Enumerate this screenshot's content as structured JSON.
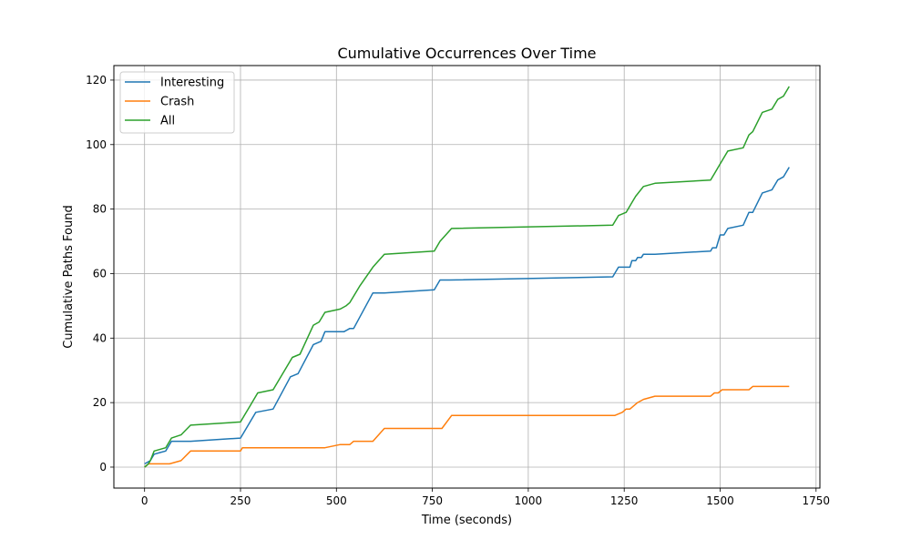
{
  "chart_data": {
    "type": "line",
    "title": "Cumulative Occurrences Over Time",
    "xlabel": "Time (seconds)",
    "ylabel": "Cumulative Paths Found",
    "xlim": [
      -80,
      1760
    ],
    "ylim": [
      -6.5,
      124.5
    ],
    "xticks": [
      0,
      250,
      500,
      750,
      1000,
      1250,
      1500,
      1750
    ],
    "yticks": [
      0,
      20,
      40,
      60,
      80,
      100,
      120
    ],
    "grid": true,
    "legend_position": "top-left",
    "series": [
      {
        "name": "Interesting",
        "color": "#1f77b4",
        "points": [
          [
            0,
            1
          ],
          [
            15,
            2
          ],
          [
            25,
            4
          ],
          [
            40,
            4.5
          ],
          [
            55,
            5
          ],
          [
            70,
            8
          ],
          [
            120,
            8
          ],
          [
            250,
            9
          ],
          [
            265,
            12
          ],
          [
            275,
            14
          ],
          [
            290,
            17
          ],
          [
            335,
            18
          ],
          [
            380,
            28
          ],
          [
            400,
            29
          ],
          [
            440,
            38
          ],
          [
            460,
            39
          ],
          [
            470,
            42
          ],
          [
            520,
            42
          ],
          [
            535,
            43
          ],
          [
            545,
            43
          ],
          [
            595,
            54
          ],
          [
            625,
            54
          ],
          [
            755,
            55
          ],
          [
            770,
            58
          ],
          [
            795,
            58
          ],
          [
            1220,
            59
          ],
          [
            1235,
            62
          ],
          [
            1265,
            62
          ],
          [
            1270,
            64
          ],
          [
            1280,
            64
          ],
          [
            1285,
            65
          ],
          [
            1295,
            65
          ],
          [
            1300,
            66
          ],
          [
            1330,
            66
          ],
          [
            1475,
            67
          ],
          [
            1480,
            68
          ],
          [
            1490,
            68
          ],
          [
            1500,
            72
          ],
          [
            1510,
            72
          ],
          [
            1520,
            74
          ],
          [
            1560,
            75
          ],
          [
            1575,
            79
          ],
          [
            1585,
            79
          ],
          [
            1610,
            85
          ],
          [
            1635,
            86
          ],
          [
            1650,
            89
          ],
          [
            1665,
            90
          ],
          [
            1680,
            93
          ]
        ]
      },
      {
        "name": "Crash",
        "color": "#ff7f0e",
        "points": [
          [
            0,
            0
          ],
          [
            10,
            1
          ],
          [
            65,
            1
          ],
          [
            95,
            2
          ],
          [
            120,
            5
          ],
          [
            250,
            5
          ],
          [
            255,
            6
          ],
          [
            470,
            6
          ],
          [
            510,
            7
          ],
          [
            535,
            7
          ],
          [
            545,
            8
          ],
          [
            595,
            8
          ],
          [
            625,
            12
          ],
          [
            775,
            12
          ],
          [
            800,
            16
          ],
          [
            1225,
            16
          ],
          [
            1245,
            17
          ],
          [
            1255,
            18
          ],
          [
            1265,
            18
          ],
          [
            1285,
            20
          ],
          [
            1300,
            21
          ],
          [
            1330,
            22
          ],
          [
            1475,
            22
          ],
          [
            1485,
            23
          ],
          [
            1495,
            23
          ],
          [
            1505,
            24
          ],
          [
            1575,
            24
          ],
          [
            1585,
            25
          ],
          [
            1680,
            25
          ]
        ]
      },
      {
        "name": "All",
        "color": "#2ca02c",
        "points": [
          [
            0,
            0
          ],
          [
            10,
            1
          ],
          [
            15,
            2
          ],
          [
            25,
            5
          ],
          [
            55,
            6
          ],
          [
            70,
            9
          ],
          [
            95,
            10
          ],
          [
            120,
            13
          ],
          [
            250,
            14
          ],
          [
            260,
            16
          ],
          [
            275,
            19
          ],
          [
            285,
            21
          ],
          [
            295,
            23
          ],
          [
            335,
            24
          ],
          [
            385,
            34
          ],
          [
            405,
            35
          ],
          [
            440,
            44
          ],
          [
            455,
            45
          ],
          [
            470,
            48
          ],
          [
            510,
            49
          ],
          [
            525,
            50
          ],
          [
            535,
            51
          ],
          [
            560,
            56
          ],
          [
            595,
            62
          ],
          [
            625,
            66
          ],
          [
            755,
            67
          ],
          [
            770,
            70
          ],
          [
            800,
            74
          ],
          [
            1220,
            75
          ],
          [
            1235,
            78
          ],
          [
            1255,
            79
          ],
          [
            1270,
            82
          ],
          [
            1280,
            84
          ],
          [
            1300,
            87
          ],
          [
            1330,
            88
          ],
          [
            1475,
            89
          ],
          [
            1485,
            91
          ],
          [
            1500,
            94
          ],
          [
            1505,
            95
          ],
          [
            1520,
            98
          ],
          [
            1560,
            99
          ],
          [
            1575,
            103
          ],
          [
            1585,
            104
          ],
          [
            1610,
            110
          ],
          [
            1635,
            111
          ],
          [
            1650,
            114
          ],
          [
            1665,
            115
          ],
          [
            1680,
            118
          ]
        ]
      }
    ]
  }
}
